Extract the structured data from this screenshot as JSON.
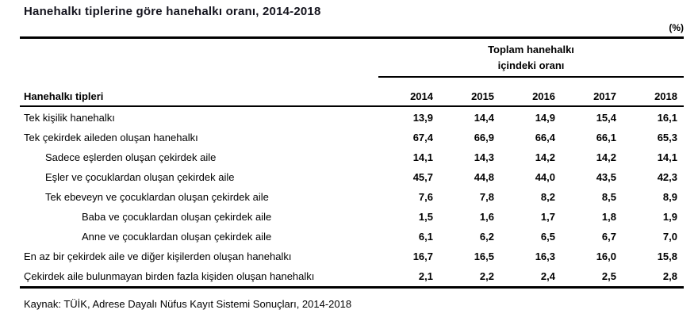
{
  "page": {
    "title": "Hanehalkı tiplerine göre hanehalkı oranı, 2014-2018",
    "unit_label": "(%)",
    "spanner_line1": "Toplam hanehalkı",
    "spanner_line2": "içindeki oranı",
    "source_note": "Kaynak: TÜİK, Adrese Dayalı Nüfus Kayıt Sistemi Sonuçları, 2014-2018"
  },
  "chart_data": {
    "type": "table",
    "title": "Hanehalkı tiplerine göre hanehalkı oranı, 2014-2018",
    "unit": "%",
    "decimal_separator": ",",
    "row_header": "Hanehalkı tipleri",
    "column_group_header": "Toplam hanehalkı içindeki oranı",
    "categories": [
      "2014",
      "2015",
      "2016",
      "2017",
      "2018"
    ],
    "series": [
      {
        "name": "Tek kişilik hanehalkı",
        "indent": 0,
        "values": [
          13.9,
          14.4,
          14.9,
          15.4,
          16.1
        ]
      },
      {
        "name": "Tek çekirdek aileden oluşan hanehalkı",
        "indent": 0,
        "values": [
          67.4,
          66.9,
          66.4,
          66.1,
          65.3
        ]
      },
      {
        "name": "Sadece eşlerden oluşan çekirdek aile",
        "indent": 1,
        "values": [
          14.1,
          14.3,
          14.2,
          14.2,
          14.1
        ]
      },
      {
        "name": "Eşler ve çocuklardan oluşan çekirdek aile",
        "indent": 1,
        "values": [
          45.7,
          44.8,
          44.0,
          43.5,
          42.3
        ]
      },
      {
        "name": "Tek ebeveyn ve çocuklardan oluşan çekirdek aile",
        "indent": 1,
        "values": [
          7.6,
          7.8,
          8.2,
          8.5,
          8.9
        ]
      },
      {
        "name": "Baba ve çocuklardan oluşan çekirdek aile",
        "indent": 2,
        "values": [
          1.5,
          1.6,
          1.7,
          1.8,
          1.9
        ]
      },
      {
        "name": "Anne ve çocuklardan oluşan çekirdek aile",
        "indent": 2,
        "values": [
          6.1,
          6.2,
          6.5,
          6.7,
          7.0
        ]
      },
      {
        "name": "En az bir çekirdek aile ve diğer kişilerden oluşan hanehalkı",
        "indent": 0,
        "values": [
          16.7,
          16.5,
          16.3,
          16.0,
          15.8
        ]
      },
      {
        "name": "Çekirdek aile bulunmayan birden fazla kişiden oluşan hanehalkı",
        "indent": 0,
        "values": [
          2.1,
          2.2,
          2.4,
          2.5,
          2.8
        ]
      }
    ],
    "source": "Kaynak: TÜİK, Adrese Dayalı Nüfus Kayıt Sistemi Sonuçları, 2014-2018",
    "layout": {
      "grid": false,
      "legend_position": "none"
    }
  }
}
